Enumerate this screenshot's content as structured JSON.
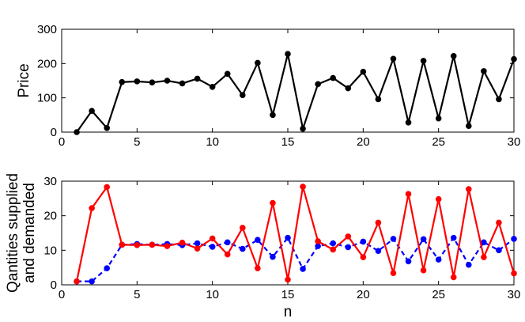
{
  "chart_data": [
    {
      "type": "line",
      "title": "",
      "xlabel": "",
      "ylabel": "Price",
      "xlim": [
        0,
        30
      ],
      "ylim": [
        0,
        300
      ],
      "xticks": [
        0,
        5,
        10,
        15,
        20,
        25,
        30
      ],
      "yticks": [
        0,
        100,
        200,
        300
      ],
      "grid": false,
      "series": [
        {
          "color": "#000000",
          "marker": "filled-circle",
          "line": "solid",
          "x": [
            1,
            2,
            3,
            4,
            5,
            6,
            7,
            8,
            9,
            10,
            11,
            12,
            13,
            14,
            15,
            16,
            17,
            18,
            19,
            20,
            21,
            22,
            23,
            24,
            25,
            26,
            27,
            28,
            29,
            30
          ],
          "y": [
            0,
            62,
            12,
            146,
            148,
            145,
            150,
            142,
            156,
            132,
            170,
            108,
            202,
            50,
            228,
            10,
            140,
            158,
            128,
            176,
            96,
            214,
            28,
            208,
            40,
            222,
            18,
            178,
            96,
            213
          ]
        }
      ]
    },
    {
      "type": "line",
      "title": "",
      "xlabel": "n",
      "ylabel": "Qantities supplied and demanded",
      "ylabel_lines": [
        "Qantities supplied",
        "and demanded"
      ],
      "xlim": [
        0,
        30
      ],
      "ylim": [
        0,
        30
      ],
      "xticks": [
        0,
        5,
        10,
        15,
        20,
        25,
        30
      ],
      "yticks": [
        0,
        10,
        20,
        30
      ],
      "grid": false,
      "series": [
        {
          "color": "#0000ff",
          "marker": "filled-circle",
          "line": "dashed",
          "x": [
            1,
            2,
            3,
            4,
            5,
            6,
            7,
            8,
            9,
            10,
            11,
            12,
            13,
            14,
            15,
            16,
            17,
            18,
            19,
            20,
            21,
            22,
            23,
            24,
            25,
            26,
            27,
            28,
            29,
            30
          ],
          "y": [
            1,
            1,
            4.8,
            11.6,
            11.8,
            11.6,
            11.8,
            11.5,
            12,
            11,
            12.3,
            10.4,
            13,
            8.1,
            13.6,
            4.6,
            11.2,
            12,
            10.9,
            12.5,
            9.8,
            13.3,
            6.8,
            13.2,
            7.3,
            13.6,
            5.8,
            12.3,
            10,
            13.3
          ]
        },
        {
          "color": "#ff0000",
          "marker": "filled-circle",
          "line": "solid",
          "x": [
            1,
            2,
            3,
            4,
            5,
            6,
            7,
            8,
            9,
            10,
            11,
            12,
            13,
            14,
            15,
            16,
            17,
            18,
            19,
            20,
            21,
            22,
            23,
            24,
            25,
            26,
            27,
            28,
            29,
            30
          ],
          "y": [
            1,
            22.2,
            28.3,
            11.6,
            11.5,
            11.6,
            11.2,
            12.2,
            10.5,
            13.4,
            8.8,
            16.5,
            4.8,
            23.7,
            1.5,
            28.4,
            12.6,
            10.2,
            14,
            8,
            18,
            3.4,
            26.3,
            4.2,
            24.8,
            2.2,
            27.7,
            8,
            18,
            3.3
          ]
        }
      ]
    }
  ]
}
